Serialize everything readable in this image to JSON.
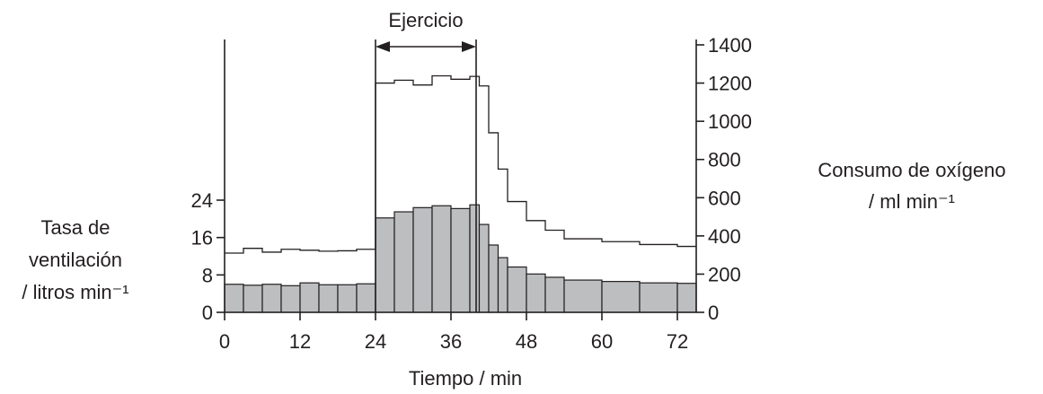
{
  "chart_data": {
    "type": "bar",
    "annotation": "Ejercicio",
    "exercise_period": [
      24,
      40
    ],
    "xlabel": "Tiempo / min",
    "ylabel_left": [
      "Tasa de",
      "ventilación",
      "/ litros min⁻¹"
    ],
    "ylabel_right": [
      "Consumo de oxígeno",
      "/ ml min⁻¹"
    ],
    "xlim": [
      0,
      75
    ],
    "ylim_left": [
      0,
      24
    ],
    "ylim_right": [
      0,
      1400
    ],
    "x_ticks": [
      0,
      12,
      24,
      36,
      48,
      60,
      72
    ],
    "y_ticks_left": [
      0,
      8,
      16,
      24
    ],
    "y_ticks_right": [
      0,
      200,
      400,
      600,
      800,
      1000,
      1200,
      1400
    ],
    "series": [
      {
        "name": "ventilación",
        "type": "bar",
        "axis": "left",
        "bins": [
          {
            "x0": 0,
            "x1": 3,
            "y": 6
          },
          {
            "x0": 3,
            "x1": 6,
            "y": 5.8
          },
          {
            "x0": 6,
            "x1": 9,
            "y": 6
          },
          {
            "x0": 9,
            "x1": 12,
            "y": 5.7
          },
          {
            "x0": 12,
            "x1": 15,
            "y": 6.3
          },
          {
            "x0": 15,
            "x1": 18,
            "y": 5.9
          },
          {
            "x0": 18,
            "x1": 21,
            "y": 5.9
          },
          {
            "x0": 21,
            "x1": 24,
            "y": 6.1
          },
          {
            "x0": 24,
            "x1": 27,
            "y": 20.2
          },
          {
            "x0": 27,
            "x1": 30,
            "y": 21.5
          },
          {
            "x0": 30,
            "x1": 33,
            "y": 22.4
          },
          {
            "x0": 33,
            "x1": 36,
            "y": 22.8
          },
          {
            "x0": 36,
            "x1": 39,
            "y": 22.2
          },
          {
            "x0": 39,
            "x1": 40.5,
            "y": 23
          },
          {
            "x0": 40.5,
            "x1": 42,
            "y": 18.8
          },
          {
            "x0": 42,
            "x1": 43.5,
            "y": 14.4
          },
          {
            "x0": 43.5,
            "x1": 45,
            "y": 11.7
          },
          {
            "x0": 45,
            "x1": 48,
            "y": 9.7
          },
          {
            "x0": 48,
            "x1": 51,
            "y": 8.2
          },
          {
            "x0": 51,
            "x1": 54,
            "y": 7.5
          },
          {
            "x0": 54,
            "x1": 60,
            "y": 6.9
          },
          {
            "x0": 60,
            "x1": 66,
            "y": 6.6
          },
          {
            "x0": 66,
            "x1": 72,
            "y": 6.3
          },
          {
            "x0": 72,
            "x1": 75,
            "y": 6.2
          }
        ]
      },
      {
        "name": "consumo de oxígeno",
        "type": "step",
        "axis": "right",
        "bins": [
          {
            "x0": 0,
            "x1": 3,
            "y": 310
          },
          {
            "x0": 3,
            "x1": 6,
            "y": 335
          },
          {
            "x0": 6,
            "x1": 9,
            "y": 315
          },
          {
            "x0": 9,
            "x1": 12,
            "y": 330
          },
          {
            "x0": 12,
            "x1": 15,
            "y": 325
          },
          {
            "x0": 15,
            "x1": 18,
            "y": 320
          },
          {
            "x0": 18,
            "x1": 21,
            "y": 322
          },
          {
            "x0": 21,
            "x1": 24,
            "y": 330
          },
          {
            "x0": 24,
            "x1": 27,
            "y": 1200
          },
          {
            "x0": 27,
            "x1": 30,
            "y": 1215
          },
          {
            "x0": 30,
            "x1": 33,
            "y": 1190
          },
          {
            "x0": 33,
            "x1": 36,
            "y": 1238
          },
          {
            "x0": 36,
            "x1": 39,
            "y": 1220
          },
          {
            "x0": 39,
            "x1": 40.5,
            "y": 1235
          },
          {
            "x0": 40.5,
            "x1": 42,
            "y": 1185
          },
          {
            "x0": 42,
            "x1": 43.5,
            "y": 940
          },
          {
            "x0": 43.5,
            "x1": 45,
            "y": 750
          },
          {
            "x0": 45,
            "x1": 48,
            "y": 580
          },
          {
            "x0": 48,
            "x1": 51,
            "y": 480
          },
          {
            "x0": 51,
            "x1": 54,
            "y": 430
          },
          {
            "x0": 54,
            "x1": 60,
            "y": 385
          },
          {
            "x0": 60,
            "x1": 66,
            "y": 370
          },
          {
            "x0": 66,
            "x1": 72,
            "y": 355
          },
          {
            "x0": 72,
            "x1": 75,
            "y": 345
          }
        ]
      }
    ]
  }
}
